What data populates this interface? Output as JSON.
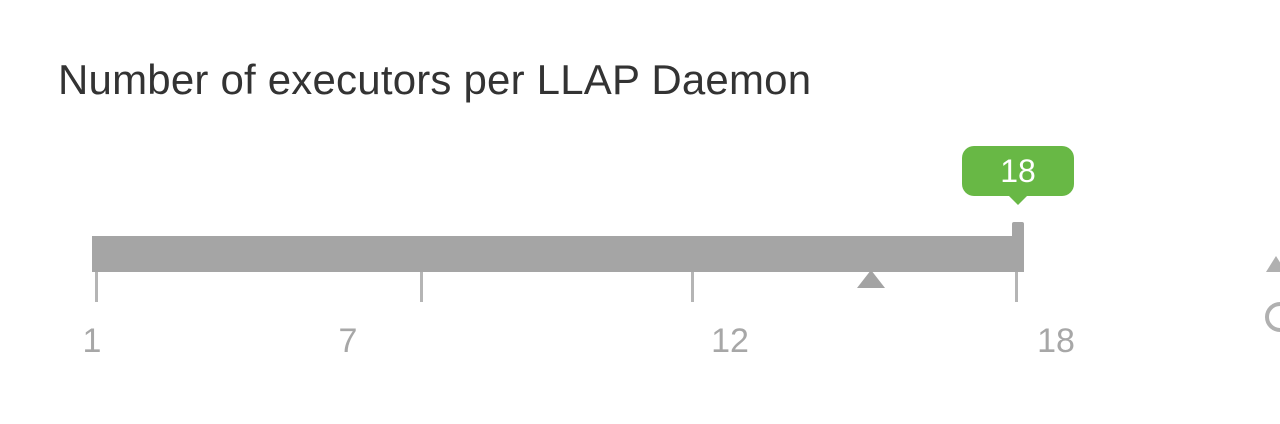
{
  "field": {
    "title": "Number of executors per LLAP Daemon"
  },
  "slider": {
    "min": 1,
    "max": 18,
    "value": 18,
    "value_label": "18",
    "recommended_value": 15.3,
    "ticks": [
      {
        "value": 1,
        "label": "1"
      },
      {
        "value": 7,
        "label": "7"
      },
      {
        "value": 12,
        "label": "12"
      },
      {
        "value": 18,
        "label": "18"
      }
    ],
    "colors": {
      "track": "#a9a9a9",
      "tooltip": "#68b845",
      "tick_label": "#a7a7a7"
    }
  },
  "icons": {
    "edge_icon": "undo-icon"
  }
}
